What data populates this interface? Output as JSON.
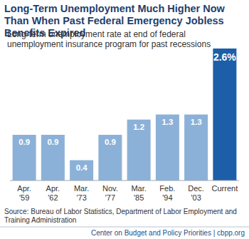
{
  "chart_data": {
    "type": "bar",
    "title": "Long-Term Unemployment Much Higher Now Than When Past Federal Emergency Jobless Benefits Expired",
    "subtitle": "Long-term unemployment rate at end of federal unemployment insurance program for past recessions",
    "categories": [
      "Apr. '59",
      "Apr. '62",
      "Mar. '73",
      "Nov. '77",
      "Mar. '85",
      "Feb. '94",
      "Dec. '03",
      "Current"
    ],
    "values": [
      0.9,
      0.9,
      0.4,
      0.9,
      1.2,
      1.3,
      1.3,
      2.6
    ],
    "value_labels": [
      "0.9",
      "0.9",
      "0.4",
      "0.9",
      "1.2",
      "1.3",
      "1.3",
      "2.6%"
    ],
    "colors": [
      "#8cb1d8",
      "#8cb1d8",
      "#8cb1d8",
      "#8cb1d8",
      "#8cb1d8",
      "#8cb1d8",
      "#8cb1d8",
      "#1d5ea8"
    ],
    "ylim": [
      0,
      2.6
    ],
    "grid": false,
    "data_labels": true,
    "tick_labels": "x",
    "source": "Source: Bureau of Labor Statistics, Department of Labor Employment and Training Administration",
    "footer": "Center on Budget and Policy Priorities | cbpp.org"
  }
}
